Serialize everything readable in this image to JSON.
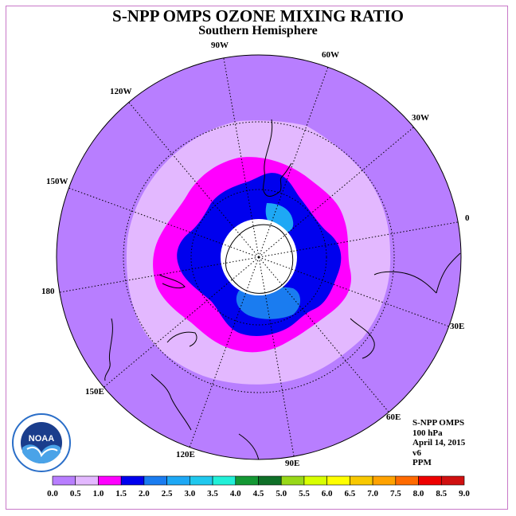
{
  "title": "S-NPP OMPS OZONE MIXING RATIO",
  "subtitle": "Southern Hemisphere",
  "lon_labels": [
    "90W",
    "60W",
    "120W",
    "30W",
    "150W",
    "0",
    "180",
    "30E",
    "150E",
    "60E",
    "120E",
    "90E"
  ],
  "info": {
    "instrument": "S-NPP OMPS",
    "level": "100 hPa",
    "date": "April 14, 2015",
    "version": "v6",
    "units": "PPM"
  },
  "logo_text": "NOAA",
  "legend": {
    "ticks": [
      "0.0",
      "0.5",
      "1.0",
      "1.5",
      "2.0",
      "2.5",
      "3.0",
      "3.5",
      "4.0",
      "4.5",
      "5.0",
      "5.5",
      "6.0",
      "6.5",
      "7.0",
      "7.5",
      "8.0",
      "8.5",
      "9.0"
    ],
    "colors": [
      "#b87eff",
      "#e3b8ff",
      "#ff00ff",
      "#0000ee",
      "#1a7cf0",
      "#1ea8f5",
      "#20c8ee",
      "#22f0d8",
      "#149834",
      "#0f7028",
      "#98d818",
      "#d8ff00",
      "#ffff00",
      "#f8c800",
      "#ffa200",
      "#ff6a00",
      "#ee0000",
      "#d01010",
      "#8b5a2b"
    ]
  },
  "map_colors": {
    "bg": "#b87eff",
    "level_0_5": "#e3b8ff",
    "level_1_0": "#ff00ff",
    "level_1_5": "#0000ee",
    "level_2_0": "#1a7cf0",
    "level_2_5": "#1ea8f5",
    "pole": "#ffffff"
  }
}
